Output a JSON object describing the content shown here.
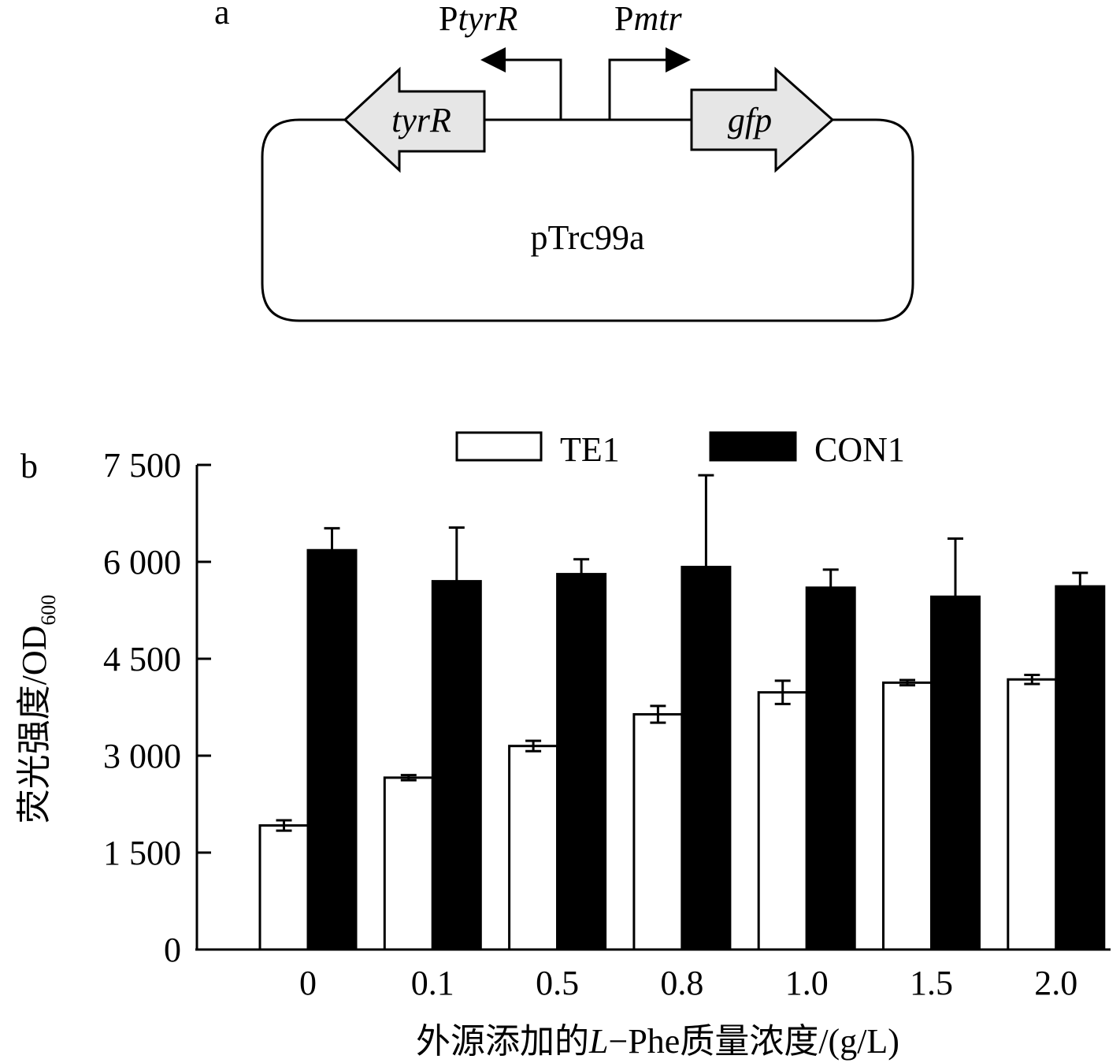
{
  "panel_a": {
    "label": "a",
    "plasmid": "pTrc99a",
    "genes": [
      {
        "name": "tyrR",
        "italic": true,
        "direction": "left"
      },
      {
        "name": "gfp",
        "italic": true,
        "direction": "right"
      }
    ],
    "promoters": [
      {
        "prefix": "P",
        "name": "tyrR",
        "direction": "left"
      },
      {
        "prefix": "P",
        "name": "mtr",
        "direction": "right"
      }
    ],
    "colors": {
      "gene_fill": "#e6e6e6",
      "line": "#000000"
    }
  },
  "chart_data": {
    "type": "bar",
    "panel_label": "b",
    "categories": [
      "0",
      "0.1",
      "0.5",
      "0.8",
      "1.0",
      "1.5",
      "2.0"
    ],
    "series": [
      {
        "name": "TE1",
        "color": "#ffffff",
        "values": [
          1920,
          2660,
          3150,
          3640,
          3980,
          4130,
          4180
        ],
        "errors": [
          80,
          40,
          80,
          130,
          180,
          40,
          70
        ]
      },
      {
        "name": "CON1",
        "color": "#000000",
        "values": [
          6180,
          5700,
          5810,
          5920,
          5600,
          5460,
          5620
        ],
        "errors": [
          340,
          830,
          230,
          1420,
          280,
          900,
          210
        ]
      }
    ],
    "xlabel": {
      "prefix": "外源添加的",
      "italic": "L",
      "suffix": "−Phe质量浓度/(g/L)"
    },
    "ylabel": {
      "main": "荧光强度/OD",
      "subscript": "600"
    },
    "yticks": [
      0,
      1500,
      3000,
      4500,
      6000,
      7500
    ],
    "ytick_labels": [
      "0",
      "1 500",
      "3 000",
      "4 500",
      "6 000",
      "7 500"
    ],
    "ylim": [
      0,
      7500
    ],
    "legend_position": "top-center",
    "grid": false
  }
}
